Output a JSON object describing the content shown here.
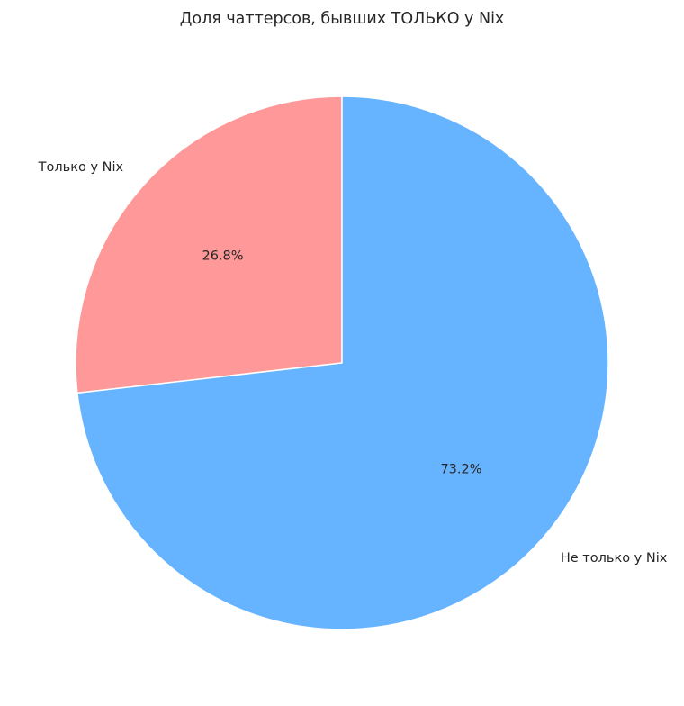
{
  "chart_data": {
    "type": "pie",
    "title": "Доля чаттерсов, бывших ТОЛЬКО у Nix",
    "categories": [
      "Только у Nix",
      "Не только у Nix"
    ],
    "values": [
      26.8,
      73.2
    ],
    "percent_labels": [
      "26.8%",
      "73.2%"
    ],
    "colors": [
      "#ff9999",
      "#66b3ff"
    ],
    "start_angle_deg": 90,
    "direction": "counterclockwise",
    "legend": "none"
  }
}
